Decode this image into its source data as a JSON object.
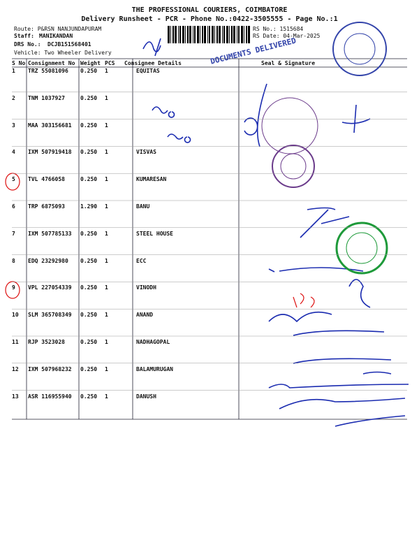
{
  "header": {
    "company": "THE PROFESSIONAL COURIERS, COIMBATORE",
    "subtitle": "Delivery Runsheet - PCR - Phone No.:0422-3505555 - Page No.:1",
    "route": "Route: P&RSN NANJUNDAPURAM",
    "staff_label": "Staff:",
    "staff": "MANIKANDAN",
    "drs_label": "DRS No.:",
    "drs": "DCJB151568401",
    "vehicle": "Vehicle: Two Wheeler Delivery",
    "rs_no": "RS No.: 1515684",
    "rs_date": "RS Date: 04-Mar-2025"
  },
  "table": {
    "columns": [
      "S No",
      "Consignment No",
      "Weight",
      "PCS",
      "Consignee Details",
      "Seal & Signature"
    ],
    "rows": [
      [
        "1",
        "TRZ 55081096",
        "0.250",
        "1",
        "EQUITAS"
      ],
      [
        "2",
        "TNM 1037927",
        "0.250",
        "1",
        ""
      ],
      [
        "3",
        "MAA 303156681",
        "0.250",
        "1",
        ""
      ],
      [
        "4",
        "IXM 507919418",
        "0.250",
        "1",
        "VISVAS"
      ],
      [
        "5",
        "TVL 4766058",
        "0.250",
        "1",
        "KUMARESAN"
      ],
      [
        "6",
        "TRP 6875093",
        "1.290",
        "1",
        "BANU"
      ],
      [
        "7",
        "IXM 507785133",
        "0.250",
        "1",
        "STEEL HOUSE"
      ],
      [
        "8",
        "EDQ 23292980",
        "0.250",
        "1",
        "ECC"
      ],
      [
        "9",
        "VPL 227054339",
        "0.250",
        "1",
        "VINODH"
      ],
      [
        "10",
        "SLM 365708349",
        "0.250",
        "1",
        "ANAND"
      ],
      [
        "11",
        "RJP 3523028",
        "0.250",
        "1",
        "NADHAGOPAL"
      ],
      [
        "12",
        "IXM 507968232",
        "0.250",
        "1",
        "BALAMURUGAN"
      ],
      [
        "13",
        "ASR 116955940",
        "0.250",
        "1",
        "DANUSH"
      ]
    ]
  },
  "stamp": "DOCUMENTS DELIVERED"
}
